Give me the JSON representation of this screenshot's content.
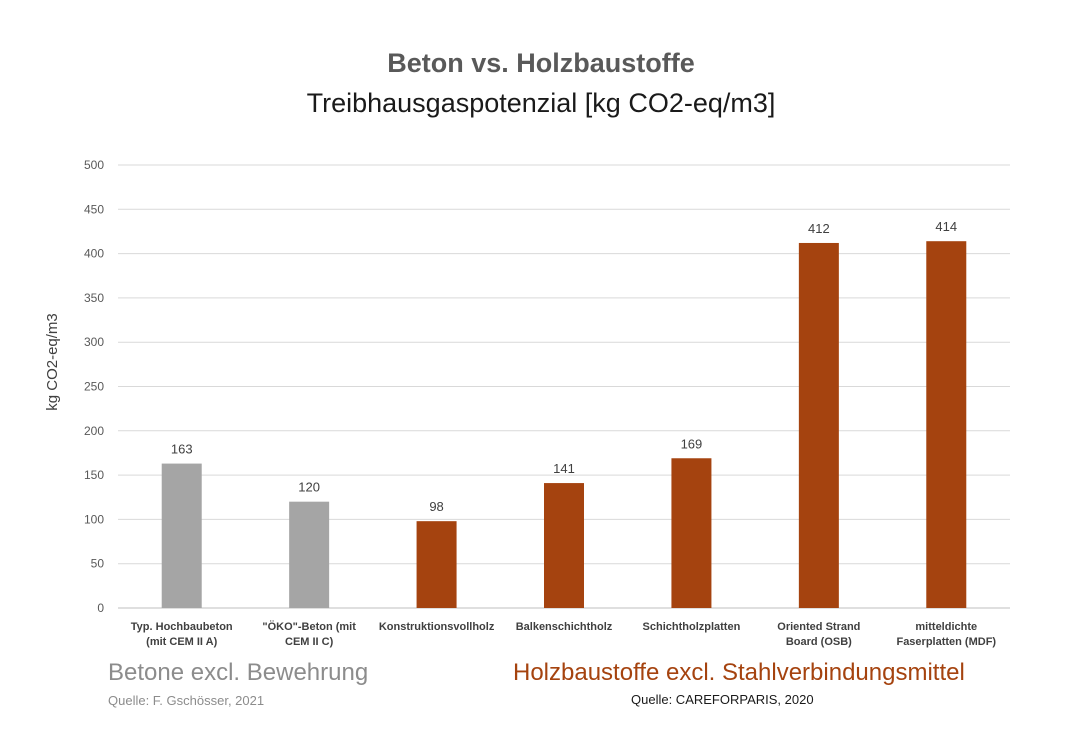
{
  "chart_data": {
    "type": "bar",
    "title": "Beton vs. Holzbaustoffe",
    "subtitle": "Treibhausgaspotenzial [kg CO2-eq/m3]",
    "ylabel": "kg CO2-eq/m3",
    "xlabel": "",
    "ylim": [
      0,
      500
    ],
    "yticks": [
      0,
      50,
      100,
      150,
      200,
      250,
      300,
      350,
      400,
      450,
      500
    ],
    "grid": true,
    "categories": [
      [
        "Typ. Hochbaubeton",
        "(mit CEM II A)"
      ],
      [
        "\"ÖKO\"-Beton (mit",
        "CEM II C)"
      ],
      [
        "Konstruktionsvollholz"
      ],
      [
        "Balkenschichtholz"
      ],
      [
        "Schichtholzplatten"
      ],
      [
        "Oriented Strand",
        "Board (OSB)"
      ],
      [
        "mitteldichte",
        "Faserplatten (MDF)"
      ]
    ],
    "values": [
      163,
      120,
      98,
      141,
      169,
      412,
      414
    ],
    "bar_colors": [
      "#a5a5a5",
      "#a5a5a5",
      "#a5430f",
      "#a5430f",
      "#a5430f",
      "#a5430f",
      "#a5430f"
    ]
  },
  "groups": {
    "concrete_label": "Betone excl. Bewehrung",
    "concrete_source": "Quelle: F. Gschösser, 2021",
    "wood_label": "Holzbaustoffe excl. Stahlverbindungsmittel",
    "wood_source": "Quelle: CAREFORPARIS, 2020"
  },
  "colors": {
    "concrete": "#a5a5a5",
    "wood": "#a5430f",
    "grid": "#d9d9d9"
  }
}
